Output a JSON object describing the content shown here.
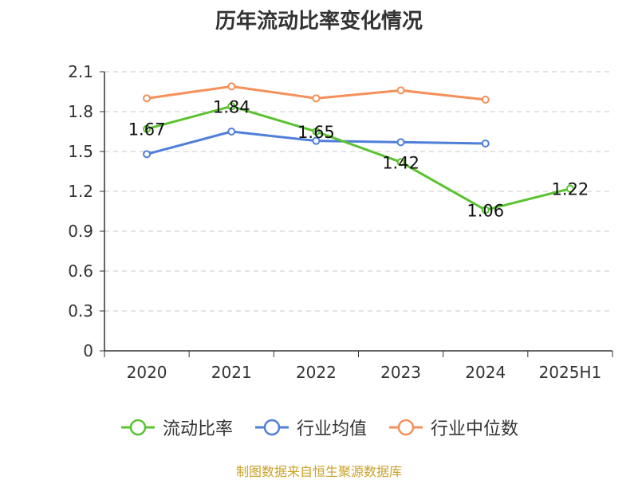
{
  "chart_data": {
    "type": "line",
    "title": "历年流动比率变化情况",
    "categories": [
      "2020",
      "2021",
      "2022",
      "2023",
      "2024",
      "2025H1"
    ],
    "ylim": [
      0,
      2.1
    ],
    "yticks": [
      "0",
      "0.3",
      "0.6",
      "0.9",
      "1.2",
      "1.5",
      "1.8",
      "2.1"
    ],
    "grid": true,
    "legend_position": "bottom",
    "series": [
      {
        "name": "流动比率",
        "color": "#5bc230",
        "values": [
          1.67,
          1.84,
          1.65,
          1.42,
          1.06,
          1.22
        ],
        "labels": [
          "1.67",
          "1.84",
          "1.65",
          "1.42",
          "1.06",
          "1.22"
        ]
      },
      {
        "name": "行业均值",
        "color": "#4f7fd9",
        "values": [
          1.48,
          1.65,
          1.58,
          1.57,
          1.56,
          null
        ]
      },
      {
        "name": "行业中位数",
        "color": "#f5905a",
        "values": [
          1.9,
          1.99,
          1.9,
          1.96,
          1.89,
          null
        ]
      }
    ]
  },
  "footer": "制图数据来自恒生聚源数据库"
}
